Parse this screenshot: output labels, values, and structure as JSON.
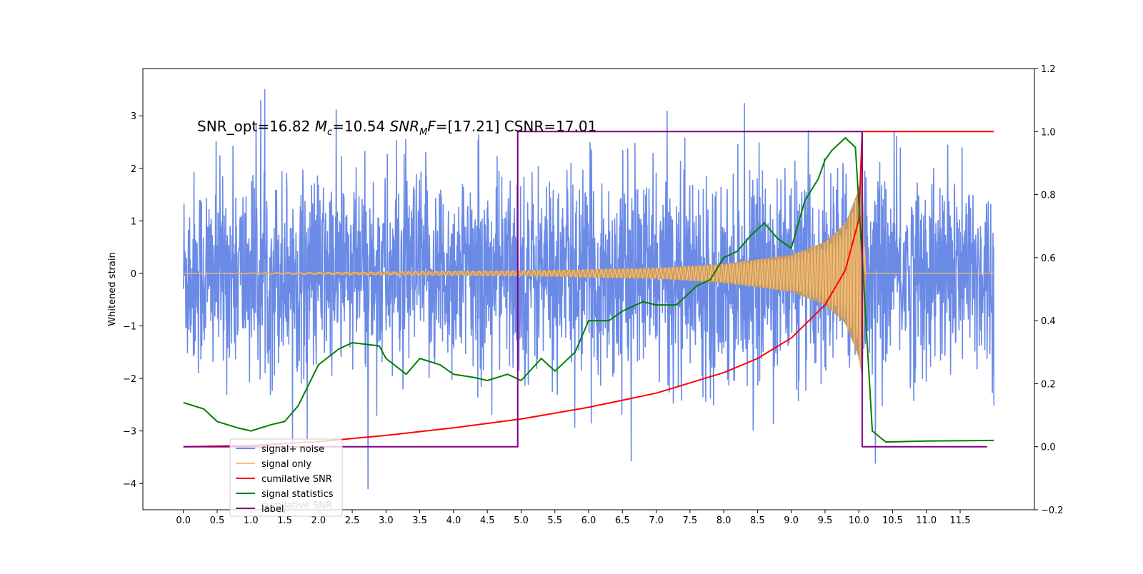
{
  "chart_data": {
    "type": "line",
    "annotation": {
      "prefix": "SNR_opt=16.82 ",
      "mc_symbol": "M",
      "mc_sub": "c",
      "mc_value": "=10.54 ",
      "snr_symbol": "SNR",
      "snr_sub": "M",
      "snr_sym2": "F",
      "snr_value": "=[17.21] CSNR=17.01"
    },
    "xlabel": "",
    "ylabel": "Whitened strain",
    "xlim": [
      -0.6,
      12.6
    ],
    "ylim_left": [
      -4.5,
      3.9
    ],
    "ylim_right": [
      -0.2,
      1.2
    ],
    "x_ticks": [
      "0.0",
      "0.5",
      "1.0",
      "1.5",
      "2.0",
      "2.5",
      "3.0",
      "3.5",
      "4.0",
      "4.5",
      "5.0",
      "5.5",
      "6.0",
      "6.5",
      "7.0",
      "7.5",
      "8.0",
      "8.5",
      "9.0",
      "9.5",
      "10.0",
      "10.5",
      "11.0",
      "11.5"
    ],
    "y_ticks_left": [
      "3",
      "2",
      "1",
      "0",
      "−1",
      "−2",
      "−3",
      "−4"
    ],
    "y_ticks_right": [
      "1.2",
      "1.0",
      "0.8",
      "0.6",
      "0.4",
      "0.2",
      "0.0",
      "−0.2"
    ],
    "series": [
      {
        "name": "signal+ noise",
        "color": "#6a8ae6",
        "axis": "left",
        "description_shape": "noise band approx ±1.8, spikes to ±3.5, x 0.0–12.0"
      },
      {
        "name": "signal only",
        "color": "#ffbf66",
        "axis": "left",
        "envelope": {
          "x": [
            0.0,
            3.0,
            5.0,
            7.0,
            8.0,
            9.0,
            9.5,
            9.8,
            10.0,
            10.05,
            10.1,
            12.0
          ],
          "amp": [
            0.0,
            0.03,
            0.05,
            0.1,
            0.18,
            0.35,
            0.6,
            0.95,
            1.6,
            2.0,
            0.0,
            0.0
          ]
        }
      },
      {
        "name": "cumilative SNR",
        "color": "#ff0000",
        "axis": "right",
        "x": [
          0.0,
          1.0,
          2.0,
          3.0,
          4.0,
          5.0,
          6.0,
          7.0,
          8.0,
          8.5,
          9.0,
          9.5,
          9.8,
          10.0,
          10.05,
          12.0
        ],
        "y": [
          0.0,
          0.004,
          0.016,
          0.036,
          0.06,
          0.088,
          0.125,
          0.17,
          0.235,
          0.28,
          0.345,
          0.45,
          0.56,
          0.72,
          1.0,
          1.0
        ]
      },
      {
        "name": "signal statistics",
        "color": "#008000",
        "axis": "right",
        "x": [
          0.0,
          0.3,
          0.5,
          0.8,
          1.0,
          1.3,
          1.5,
          1.7,
          2.0,
          2.3,
          2.5,
          2.9,
          3.0,
          3.3,
          3.5,
          3.8,
          4.0,
          4.3,
          4.5,
          4.8,
          5.0,
          5.3,
          5.5,
          5.8,
          6.0,
          6.3,
          6.5,
          6.8,
          7.0,
          7.3,
          7.6,
          7.8,
          8.0,
          8.2,
          8.4,
          8.6,
          8.8,
          9.0,
          9.2,
          9.4,
          9.5,
          9.6,
          9.8,
          9.95,
          10.05,
          10.2,
          10.4,
          11.0,
          12.0
        ],
        "y": [
          0.14,
          0.12,
          0.08,
          0.06,
          0.05,
          0.07,
          0.08,
          0.13,
          0.26,
          0.31,
          0.33,
          0.32,
          0.28,
          0.23,
          0.28,
          0.26,
          0.23,
          0.22,
          0.21,
          0.23,
          0.21,
          0.28,
          0.24,
          0.3,
          0.4,
          0.4,
          0.43,
          0.46,
          0.45,
          0.45,
          0.51,
          0.53,
          0.6,
          0.62,
          0.67,
          0.71,
          0.66,
          0.63,
          0.78,
          0.85,
          0.91,
          0.94,
          0.98,
          0.95,
          0.6,
          0.05,
          0.015,
          0.018,
          0.02
        ]
      },
      {
        "name": "label",
        "color": "#800080",
        "axis": "right",
        "x": [
          0.0,
          4.95,
          4.95,
          10.05,
          10.05,
          11.9
        ],
        "y": [
          0.0,
          0.0,
          1.0,
          1.0,
          0.0,
          0.0
        ]
      }
    ],
    "legend": {
      "placement": "lower-left",
      "entries": [
        "signal+ noise",
        "signal only",
        "cumilative SNR",
        "signal statistics",
        "label"
      ],
      "ghost_text": "cumilative SNR"
    },
    "grid": false
  },
  "colors": {
    "noise": "#6a8ae6",
    "signal": "#ffbf66",
    "signal_fill": "#c09a70",
    "cum_snr": "#ff0000",
    "stat": "#008000",
    "label": "#800080"
  }
}
